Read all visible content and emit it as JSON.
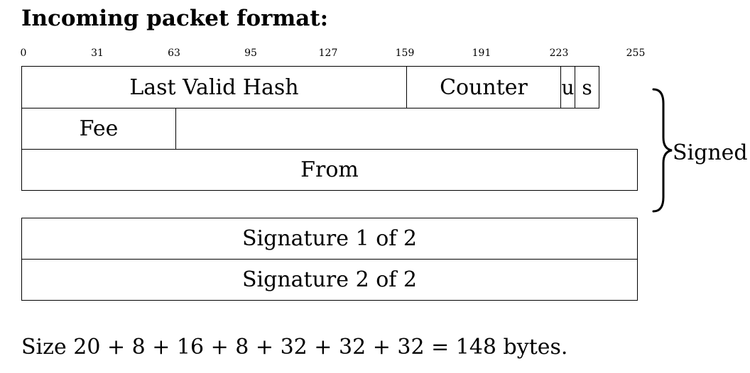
{
  "title": "Incoming packet format:",
  "ruler": {
    "ticks": [
      "0",
      "31",
      "63",
      "95",
      "127",
      "159",
      "191",
      "223",
      "255"
    ]
  },
  "fields": {
    "last_valid_hash": "Last Valid Hash",
    "counter": "Counter",
    "u": "u",
    "s": "s",
    "fee": "Fee",
    "from": "From",
    "signature_1": "Signature 1 of 2",
    "signature_2": "Signature 2 of 2"
  },
  "brace_label": "Signed",
  "footer": "Size 20 + 8 + 16 + 8 + 32 + 32 + 32 = 148 bytes."
}
